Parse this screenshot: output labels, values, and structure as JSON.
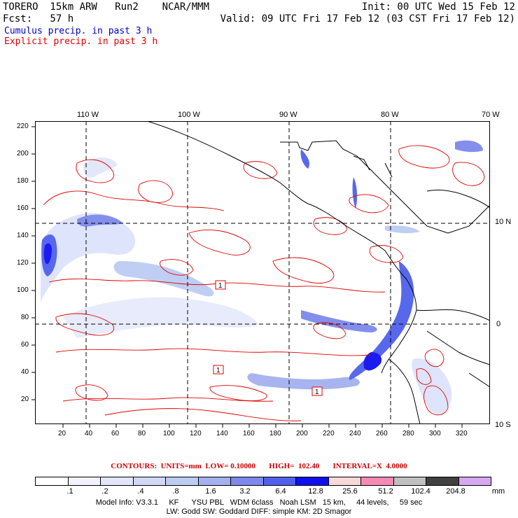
{
  "header": {
    "model": "TORERO  15km ARW   Run2    NCAR/MMM",
    "init": "Init: 00 UTC Wed 15 Feb 12",
    "fcst": "Fcst:   57 h",
    "valid": "Valid: 09 UTC Fri 17 Feb 12 (03 CST Fri 17 Feb 12)",
    "cumulus": "Cumulus precip. in past 3 h",
    "explicit": "Explicit precip. in past 3 h"
  },
  "colors": {
    "cumulus_text": "#0000cc",
    "explicit_text": "#dd0000",
    "contour_line": "#e00000",
    "coast": "#000000"
  },
  "map": {
    "lon_labels": [
      "110 W",
      "100 W",
      "90 W",
      "80 W",
      "70 W"
    ],
    "lat_labels": [
      "10 N",
      "0",
      "10 S"
    ],
    "y_ticks": [
      "220",
      "200",
      "180",
      "160",
      "140",
      "120",
      "100",
      "80",
      "60",
      "40",
      "20"
    ],
    "x_ticks": [
      "20",
      "40",
      "60",
      "80",
      "100",
      "120",
      "140",
      "160",
      "180",
      "200",
      "220",
      "240",
      "260",
      "280",
      "300",
      "320"
    ],
    "contour_labels": [
      "1",
      "1",
      "1"
    ]
  },
  "contours_line": "CONTOURS:  UNITS=mm  LOW= 0.10000       HIGH=  102.40       INTERVAL=X  4.0000",
  "colorbar": {
    "colors": [
      "#ffffff",
      "#f2f2ff",
      "#e2e6fa",
      "#d0d8f6",
      "#bcccf2",
      "#a4b0f0",
      "#7e88ec",
      "#5060ec",
      "#1010ee",
      "#f8d8d8",
      "#f68ab4",
      "#c0c0c0",
      "#404040",
      "#d6a8f2"
    ],
    "labels": [
      ".1",
      ".2",
      ".4",
      ".8",
      "1.6",
      "3.2",
      "6.4",
      "12.8",
      "25.6",
      "51.2",
      "102.4",
      "204.8"
    ],
    "unit": "mm"
  },
  "footer": {
    "line1": "Model Info: V3.3.1     KF      YSU PBL   WDM 6class   Noah LSM   15 km,     44 levels,     59 sec",
    "line2": "LW: Godd SW: Goddard DIFF: simple KM: 2D Smagor"
  }
}
